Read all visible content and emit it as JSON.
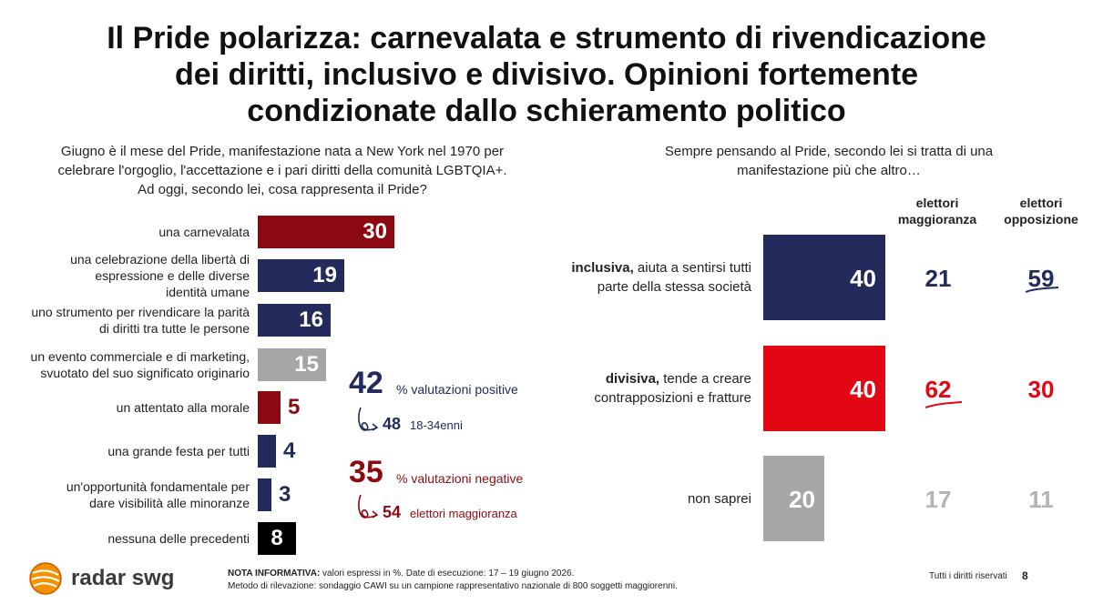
{
  "title": {
    "line1": "Il Pride polarizza: carnevalata e strumento di rivendicazione",
    "line2": "dei diritti, inclusivo e divisivo. Opinioni fortemente",
    "line3": "condizionate dallo schieramento politico"
  },
  "left_question": {
    "line1": "Giugno è il mese del Pride, manifestazione nata a New York nel 1970 per",
    "line2": "celebrare l'orgoglio, l'accettazione e i pari diritti della comunità LGBTQIA+.",
    "line3": "Ad oggi, secondo lei, cosa rappresenta il Pride?"
  },
  "right_question": {
    "line1": "Sempre pensando al Pride, secondo lei si tratta di una",
    "line2": "manifestazione più che altro…"
  },
  "column_headers": {
    "majority": [
      "elettori",
      "maggioranza"
    ],
    "opposition": [
      "elettori",
      "opposizione"
    ]
  },
  "left_labels": [
    [
      "una carnevalata"
    ],
    [
      "una celebrazione della libertà di",
      "espressione e delle diverse",
      "identità umane"
    ],
    [
      "uno strumento per rivendicare la parità",
      "di diritti tra tutte le persone"
    ],
    [
      "un evento commerciale e di marketing,",
      "svuotato del suo significato originario"
    ],
    [
      "un attentato alla morale"
    ],
    [
      "una grande festa per tutti"
    ],
    [
      "un'opportunità fondamentale per",
      "dare visibilità alle minoranze"
    ],
    [
      "nessuna delle precedenti"
    ]
  ],
  "callouts": {
    "positive": {
      "value": "42",
      "label": "% valutazioni positive",
      "sub_value": "48",
      "sub_label": "18-34enni"
    },
    "negative": {
      "value": "35",
      "label": "% valutazioni negative",
      "sub_value": "54",
      "sub_label": "elettori maggioranza"
    }
  },
  "right_rows": [
    {
      "bold": "inclusiva,",
      "rest": " aiuta a sentirsi tutti",
      "line2": "parte della stessa società",
      "value": "40",
      "majority": "21",
      "opposition": "59"
    },
    {
      "bold": "divisiva,",
      "rest": " tende a creare",
      "line2": "contrapposizioni e fratture",
      "value": "40",
      "majority": "62",
      "opposition": "30"
    },
    {
      "bold": "",
      "rest": "non saprei",
      "line2": "",
      "value": "20",
      "majority": "17",
      "opposition": "11"
    }
  ],
  "footer": {
    "logo_text": "radar swg",
    "note_label": "NOTA INFORMATIVA:",
    "note_text": " valori espressi in %. Date di esecuzione: 17 – 19 giugno 2026.",
    "method": "Metodo di rilevazione: sondaggio CAWI su un campione rappresentativo nazionale di 800 soggetti maggiorenni.",
    "rights": "Tutti i diritti riservati",
    "page": "8"
  },
  "colors": {
    "dark_red": "#8b0a12",
    "navy": "#232a5c",
    "gray": "#a6a6a6",
    "black": "#000000",
    "red": "#e30613",
    "light_gray_text": "#b3b3b3"
  },
  "chart_data": [
    {
      "type": "bar",
      "orientation": "horizontal",
      "categories": [
        "una carnevalata",
        "una celebrazione della libertà di espressione e delle diverse identità umane",
        "uno strumento per rivendicare la parità di diritti tra tutte le persone",
        "un evento commerciale e di marketing, svuotato del suo significato originario",
        "un attentato alla morale",
        "una grande festa per tutti",
        "un'opportunità fondamentale per dare visibilità alle minoranze",
        "nessuna delle precedenti"
      ],
      "values": [
        30,
        19,
        16,
        15,
        5,
        4,
        3,
        8
      ],
      "bar_colors": [
        "#8b0a12",
        "#232a5c",
        "#232a5c",
        "#a6a6a6",
        "#8b0a12",
        "#232a5c",
        "#232a5c",
        "#000000"
      ],
      "title": "Ad oggi, secondo lei, cosa rappresenta il Pride?"
    },
    {
      "type": "bar",
      "orientation": "horizontal",
      "categories": [
        "inclusiva, aiuta a sentirsi tutti parte della stessa società",
        "divisiva, tende a creare contrapposizioni e fratture",
        "non saprei"
      ],
      "values": [
        40,
        40,
        20
      ],
      "bar_colors": [
        "#232a5c",
        "#e30613",
        "#a6a6a6"
      ],
      "series": [
        {
          "name": "elettori maggioranza",
          "values": [
            21,
            62,
            17
          ]
        },
        {
          "name": "elettori opposizione",
          "values": [
            59,
            30,
            11
          ]
        }
      ],
      "title": "Sempre pensando al Pride, secondo lei si tratta di una manifestazione più che altro…"
    }
  ]
}
